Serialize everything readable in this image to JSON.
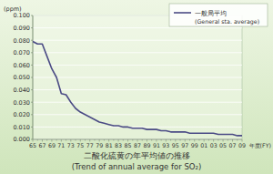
{
  "chart_data": {
    "type": "line",
    "title": "二酸化硫黄の年平均値の推移",
    "subtitle": "(Trend of annual average for SO₂)",
    "y_label": "(ppm)",
    "x_label": "年度(FY)",
    "categories": [
      "65",
      null,
      "67",
      null,
      "69",
      null,
      "71",
      null,
      "73",
      null,
      "75",
      null,
      "77",
      null,
      "79",
      null,
      "81",
      null,
      "83",
      null,
      "85",
      null,
      "87",
      null,
      "89",
      null,
      "91",
      null,
      "93",
      null,
      "95",
      null,
      "97",
      null,
      "99",
      null,
      "01",
      null,
      "03",
      null,
      "05",
      null,
      "07",
      null,
      "09"
    ],
    "series": [
      {
        "name": "一般局平均(General sta. average)",
        "color": "#4b4b85",
        "values": [
          0.079,
          0.077,
          0.077,
          0.067,
          0.057,
          0.05,
          0.037,
          0.036,
          0.03,
          0.025,
          0.022,
          0.02,
          0.018,
          0.016,
          0.014,
          0.013,
          0.012,
          0.011,
          0.011,
          0.01,
          0.01,
          0.009,
          0.009,
          0.009,
          0.008,
          0.008,
          0.008,
          0.007,
          0.007,
          0.006,
          0.006,
          0.006,
          0.006,
          0.005,
          0.005,
          0.005,
          0.005,
          0.005,
          0.005,
          0.004,
          0.004,
          0.004,
          0.004,
          0.003,
          0.003
        ]
      }
    ],
    "ylim": [
      0,
      0.1
    ],
    "yticks": [
      {
        "value": 0,
        "label": "0.000"
      },
      {
        "value": 0.01,
        "label": "0.010"
      },
      {
        "value": 0.02,
        "label": "0.020"
      },
      {
        "value": 0.03,
        "label": "0.030"
      },
      {
        "value": 0.04,
        "label": "0.040"
      },
      {
        "value": 0.05,
        "label": "0.050"
      },
      {
        "value": 0.06,
        "label": "0.060"
      },
      {
        "value": 0.07,
        "label": "0.070"
      },
      {
        "value": 0.08,
        "label": "0.080"
      },
      {
        "value": 0.09,
        "label": "0.090"
      },
      {
        "value": 0.1,
        "label": "0.100"
      }
    ],
    "grid": true,
    "legend": "top-right"
  }
}
